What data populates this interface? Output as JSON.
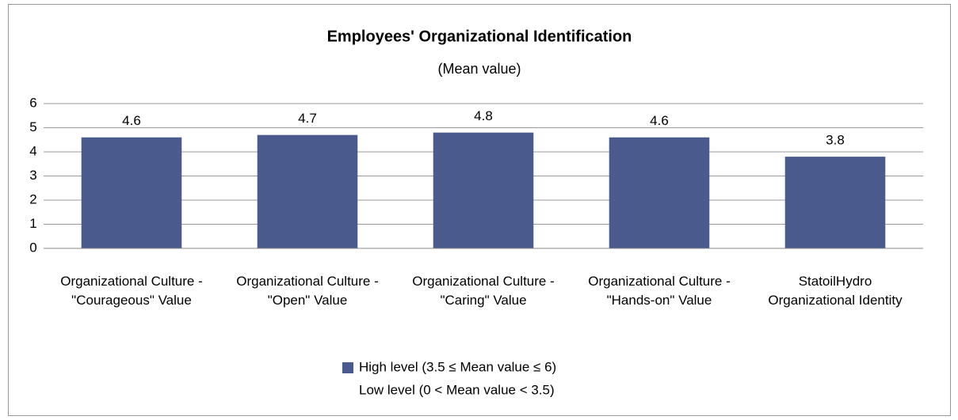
{
  "chart_data": {
    "type": "bar",
    "title": "Employees' Organizational Identification",
    "subtitle": "(Mean value)",
    "categories": [
      "Organizational Culture - \"Courageous\" Value",
      "Organizational Culture - \"Open\" Value",
      "Organizational Culture - \"Caring\" Value",
      "Organizational Culture - \"Hands-on\" Value",
      "StatoilHydro Organizational Identity"
    ],
    "series": [
      {
        "name": "High level (3.5 ≤ Mean value ≤ 6)",
        "color": "#4a5a8c",
        "values": [
          4.6,
          4.7,
          4.8,
          4.6,
          3.8
        ]
      },
      {
        "name": "Low level (0 < Mean value < 3.5)",
        "color": "#ffffff",
        "values": [
          null,
          null,
          null,
          null,
          null
        ]
      }
    ],
    "ylim": [
      0,
      6
    ],
    "yticks": [
      0,
      1,
      2,
      3,
      4,
      5,
      6
    ],
    "grid": true,
    "legend": "bottom"
  }
}
